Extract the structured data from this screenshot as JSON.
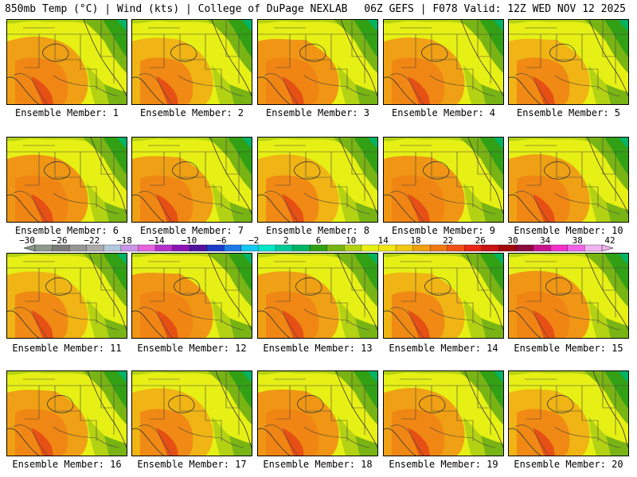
{
  "header": {
    "left": "850mb Temp (°C) | Wind (kts) | College of DuPage NEXLAB",
    "right": "06Z GEFS | F078 Valid: 12Z WED NOV 12 2025"
  },
  "members": [
    "Ensemble Member: 1",
    "Ensemble Member: 2",
    "Ensemble Member: 3",
    "Ensemble Member: 4",
    "Ensemble Member: 5",
    "Ensemble Member: 6",
    "Ensemble Member: 7",
    "Ensemble Member: 8",
    "Ensemble Member: 9",
    "Ensemble Member: 10",
    "Ensemble Member: 11",
    "Ensemble Member: 12",
    "Ensemble Member: 13",
    "Ensemble Member: 14",
    "Ensemble Member: 15",
    "Ensemble Member: 16",
    "Ensemble Member: 17",
    "Ensemble Member: 18",
    "Ensemble Member: 19",
    "Ensemble Member: 20"
  ],
  "colorbar": {
    "labels": [
      "−30",
      "−26",
      "−22",
      "−18",
      "−14",
      "−10",
      "−6",
      "−2",
      "2",
      "6",
      "10",
      "14",
      "18",
      "22",
      "26",
      "30",
      "34",
      "38",
      "42"
    ],
    "colors": [
      "#8c9a8c",
      "#7a7a7a",
      "#969696",
      "#aaaaaa",
      "#b4c8dc",
      "#c896e6",
      "#e664dc",
      "#b432c8",
      "#8c14b4",
      "#5014a0",
      "#1e3cc8",
      "#1e78e6",
      "#14c8f0",
      "#00e6c8",
      "#00c896",
      "#00b464",
      "#32a014",
      "#78b414",
      "#b4d214",
      "#e6f014",
      "#f0e614",
      "#f0c814",
      "#f0a014",
      "#f07814",
      "#f05014",
      "#e62814",
      "#c81414",
      "#a00a0a",
      "#8c0a3c",
      "#c8148c",
      "#f032c8",
      "#f064e6",
      "#f0b4f0"
    ]
  }
}
